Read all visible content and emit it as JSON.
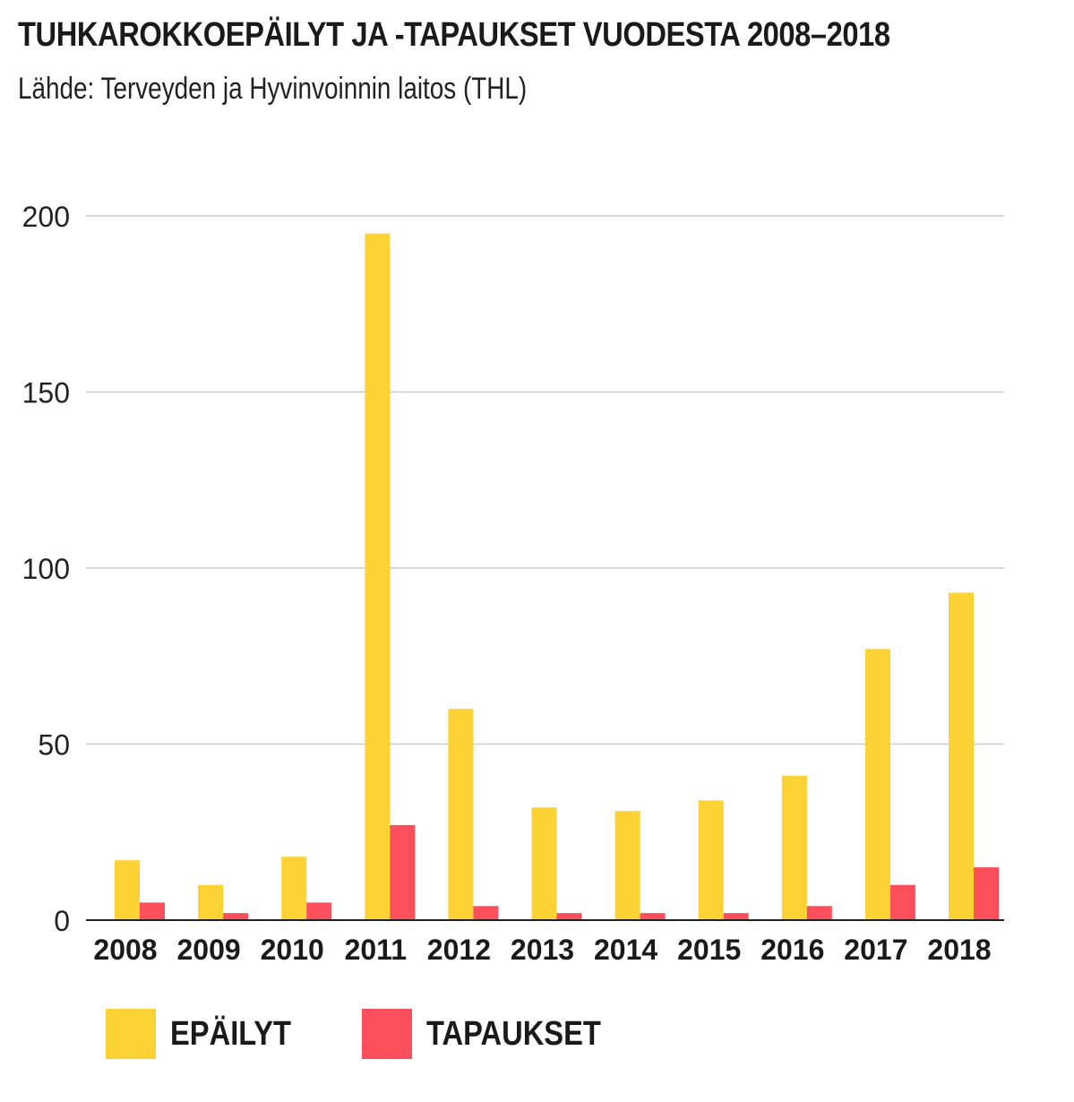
{
  "title": "TUHKAROKKOEPÄILYT JA -TAPAUKSET VUODESTA 2008–2018",
  "subtitle": "Lähde: Terveyden ja Hyvinvoinnin laitos (THL)",
  "chart_data": {
    "type": "bar",
    "title": "TUHKAROKKOEPÄILYT JA -TAPAUKSET VUODESTA 2008–2018",
    "subtitle": "Lähde: Terveyden ja Hyvinvoinnin laitos (THL)",
    "xlabel": "",
    "ylabel": "",
    "categories": [
      "2008",
      "2009",
      "2010",
      "2011",
      "2012",
      "2013",
      "2014",
      "2015",
      "2016",
      "2017",
      "2018"
    ],
    "series": [
      {
        "name": "EPÄILYT",
        "color": "#FDD235",
        "values": [
          17,
          10,
          18,
          195,
          60,
          32,
          31,
          34,
          41,
          77,
          93
        ]
      },
      {
        "name": "TAPAUKSET",
        "color": "#FB4F5B",
        "values": [
          5,
          2,
          5,
          27,
          4,
          2,
          2,
          2,
          4,
          10,
          15
        ]
      }
    ],
    "ylim": [
      0,
      200
    ],
    "yticks": [
      "0",
      "50",
      "100",
      "150",
      "200"
    ],
    "grid": true,
    "legend_position": "bottom-left"
  }
}
